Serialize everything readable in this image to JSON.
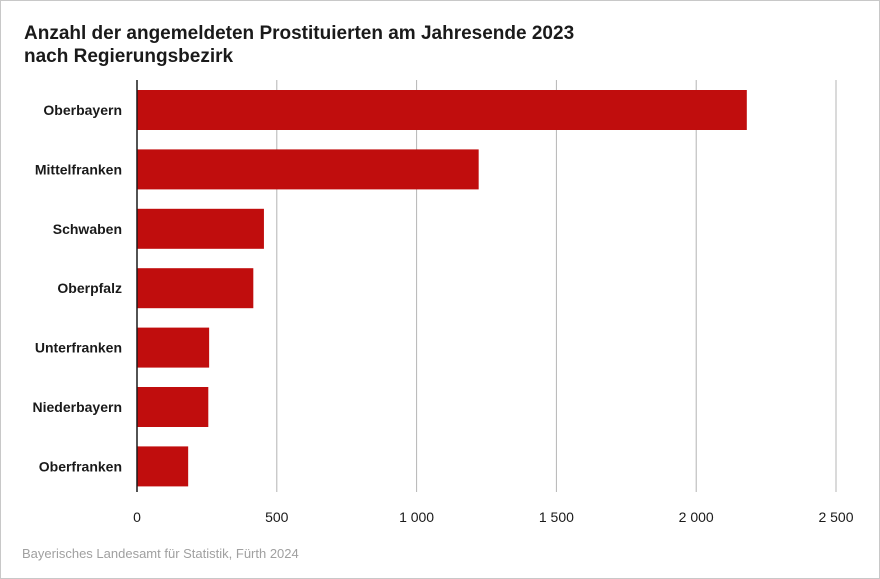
{
  "chart_data": {
    "type": "bar",
    "orientation": "horizontal",
    "title_line1": "Anzahl der angemeldeten Prostituierten am Jahresende 2023",
    "title_line2": "nach Regierungsbezirk",
    "categories": [
      "Oberbayern",
      "Mittelfranken",
      "Schwaben",
      "Oberpfalz",
      "Unterfranken",
      "Niederbayern",
      "Oberfranken"
    ],
    "values": [
      2181,
      1222,
      454,
      416,
      258,
      255,
      183
    ],
    "xlim": [
      0,
      2500
    ],
    "x_ticks": [
      0,
      500,
      1000,
      1500,
      2000,
      2500
    ],
    "x_tick_labels": [
      "0",
      "500",
      "1 000",
      "1 500",
      "2 000",
      "2 500"
    ],
    "grid": "vertical",
    "bar_color": "#c00d0d",
    "grid_color": "#b4b4b4"
  },
  "footer": "Bayerisches Landesamt für Statistik, Fürth 2024"
}
